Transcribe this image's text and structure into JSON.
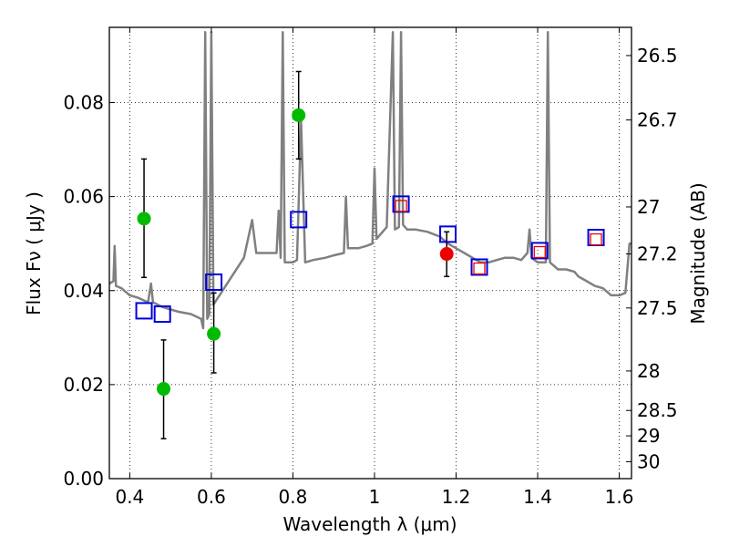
{
  "chart_data": {
    "type": "scatter",
    "title": "",
    "xlabel": "Wavelength  λ (μm)",
    "ylabel": "Flux  Fν  ( μJy )",
    "ylabel_right": "Magnitude (AB)",
    "xlim": [
      0.35,
      1.63
    ],
    "ylim": [
      0.0,
      0.096
    ],
    "grid": true,
    "xticks": [
      0.4,
      0.6,
      0.8,
      1.0,
      1.2,
      1.4,
      1.6
    ],
    "xtick_labels": [
      "0.4",
      "0.6",
      "0.8",
      "1",
      "1.2",
      "1.4",
      "1.6"
    ],
    "yticks": [
      0.0,
      0.02,
      0.04,
      0.06,
      0.08
    ],
    "ytick_labels": [
      "0.00",
      "0.02",
      "0.04",
      "0.06",
      "0.08"
    ],
    "right_ticks": [
      {
        "label": "26.5",
        "flux": 0.09
      },
      {
        "label": "26.7",
        "flux": 0.0763
      },
      {
        "label": "27",
        "flux": 0.0578
      },
      {
        "label": "27.2",
        "flux": 0.0478
      },
      {
        "label": "27.5",
        "flux": 0.0363
      },
      {
        "label": "28",
        "flux": 0.0229
      },
      {
        "label": "28.5",
        "flux": 0.0145
      },
      {
        "label": "29",
        "flux": 0.0091
      },
      {
        "label": "30",
        "flux": 0.0036
      }
    ],
    "series": [
      {
        "kind": "line",
        "color": "#808080",
        "points": [
          [
            0.35,
            0.0415
          ],
          [
            0.36,
            0.042
          ],
          [
            0.363,
            0.0495
          ],
          [
            0.366,
            0.041
          ],
          [
            0.38,
            0.0405
          ],
          [
            0.4,
            0.039
          ],
          [
            0.42,
            0.0385
          ],
          [
            0.445,
            0.0375
          ],
          [
            0.452,
            0.0415
          ],
          [
            0.457,
            0.0375
          ],
          [
            0.48,
            0.0365
          ],
          [
            0.5,
            0.036
          ],
          [
            0.52,
            0.0355
          ],
          [
            0.55,
            0.035
          ],
          [
            0.575,
            0.034
          ],
          [
            0.58,
            0.032
          ],
          [
            0.585,
            0.095
          ],
          [
            0.59,
            0.034
          ],
          [
            0.595,
            0.035
          ],
          [
            0.6,
            0.095
          ],
          [
            0.605,
            0.037
          ],
          [
            0.62,
            0.039
          ],
          [
            0.65,
            0.043
          ],
          [
            0.68,
            0.047
          ],
          [
            0.7,
            0.055
          ],
          [
            0.71,
            0.048
          ],
          [
            0.73,
            0.048
          ],
          [
            0.76,
            0.048
          ],
          [
            0.765,
            0.057
          ],
          [
            0.77,
            0.047
          ],
          [
            0.775,
            0.095
          ],
          [
            0.78,
            0.046
          ],
          [
            0.8,
            0.046
          ],
          [
            0.81,
            0.0465
          ],
          [
            0.82,
            0.076
          ],
          [
            0.83,
            0.046
          ],
          [
            0.85,
            0.0465
          ],
          [
            0.88,
            0.047
          ],
          [
            0.9,
            0.0475
          ],
          [
            0.925,
            0.048
          ],
          [
            0.93,
            0.06
          ],
          [
            0.935,
            0.049
          ],
          [
            0.96,
            0.049
          ],
          [
            0.98,
            0.0495
          ],
          [
            0.995,
            0.05
          ],
          [
            1.0,
            0.066
          ],
          [
            1.005,
            0.051
          ],
          [
            1.03,
            0.0535
          ],
          [
            1.045,
            0.095
          ],
          [
            1.05,
            0.053
          ],
          [
            1.06,
            0.0535
          ],
          [
            1.065,
            0.095
          ],
          [
            1.07,
            0.054
          ],
          [
            1.08,
            0.053
          ],
          [
            1.1,
            0.053
          ],
          [
            1.13,
            0.0525
          ],
          [
            1.16,
            0.0515
          ],
          [
            1.18,
            0.05
          ],
          [
            1.2,
            0.049
          ],
          [
            1.22,
            0.048
          ],
          [
            1.24,
            0.047
          ],
          [
            1.26,
            0.046
          ],
          [
            1.28,
            0.046
          ],
          [
            1.3,
            0.0465
          ],
          [
            1.32,
            0.047
          ],
          [
            1.34,
            0.047
          ],
          [
            1.36,
            0.0465
          ],
          [
            1.375,
            0.048
          ],
          [
            1.38,
            0.053
          ],
          [
            1.385,
            0.047
          ],
          [
            1.4,
            0.046
          ],
          [
            1.42,
            0.046
          ],
          [
            1.425,
            0.095
          ],
          [
            1.43,
            0.046
          ],
          [
            1.45,
            0.0445
          ],
          [
            1.47,
            0.0445
          ],
          [
            1.49,
            0.044
          ],
          [
            1.5,
            0.043
          ],
          [
            1.52,
            0.042
          ],
          [
            1.54,
            0.041
          ],
          [
            1.56,
            0.0405
          ],
          [
            1.58,
            0.039
          ],
          [
            1.6,
            0.039
          ],
          [
            1.615,
            0.0395
          ],
          [
            1.625,
            0.05
          ],
          [
            1.63,
            0.05
          ]
        ]
      },
      {
        "kind": "points",
        "name": "green",
        "color": "#00bb00",
        "marker": "circle",
        "points": [
          {
            "x": 0.435,
            "y": 0.0553,
            "ylo": 0.0428,
            "yhi": 0.068
          },
          {
            "x": 0.483,
            "y": 0.0191,
            "ylo": 0.0085,
            "yhi": 0.0295
          },
          {
            "x": 0.606,
            "y": 0.0308,
            "ylo": 0.0225,
            "yhi": 0.0395
          },
          {
            "x": 0.814,
            "y": 0.0773,
            "ylo": 0.068,
            "yhi": 0.0866
          }
        ]
      },
      {
        "kind": "points",
        "name": "red",
        "color": "#ee0000",
        "marker": "circle",
        "points": [
          {
            "x": 1.177,
            "y": 0.0478,
            "ylo": 0.043,
            "yhi": 0.0525
          }
        ]
      },
      {
        "kind": "points",
        "name": "blue-squares",
        "color": "#0000dd",
        "marker": "square",
        "points": [
          {
            "x": 0.435,
            "y": 0.0357
          },
          {
            "x": 0.48,
            "y": 0.035
          },
          {
            "x": 0.606,
            "y": 0.0418
          },
          {
            "x": 0.814,
            "y": 0.0551
          },
          {
            "x": 1.065,
            "y": 0.0584
          },
          {
            "x": 1.18,
            "y": 0.052
          },
          {
            "x": 1.257,
            "y": 0.045
          },
          {
            "x": 1.405,
            "y": 0.0485
          },
          {
            "x": 1.543,
            "y": 0.0513
          }
        ]
      },
      {
        "kind": "points",
        "name": "red-squares",
        "color": "#ee0000",
        "marker": "square-small",
        "points": [
          {
            "x": 1.065,
            "y": 0.058
          },
          {
            "x": 1.257,
            "y": 0.0447
          },
          {
            "x": 1.405,
            "y": 0.0482
          },
          {
            "x": 1.543,
            "y": 0.0509
          }
        ]
      }
    ]
  }
}
